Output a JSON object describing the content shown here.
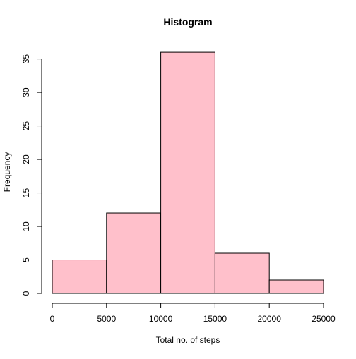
{
  "chart_data": {
    "type": "bar",
    "title": "Histogram",
    "xlabel": "Total no. of steps",
    "ylabel": "Frequency",
    "bins": [
      {
        "from": 0,
        "to": 5000,
        "count": 5
      },
      {
        "from": 5000,
        "to": 10000,
        "count": 12
      },
      {
        "from": 10000,
        "to": 15000,
        "count": 36
      },
      {
        "from": 15000,
        "to": 20000,
        "count": 6
      },
      {
        "from": 20000,
        "to": 25000,
        "count": 2
      }
    ],
    "xlim": [
      0,
      25000
    ],
    "ylim": [
      0,
      35
    ],
    "x_ticks": [
      0,
      5000,
      10000,
      15000,
      20000,
      25000
    ],
    "x_tick_labels": [
      "0",
      "5000",
      "10000",
      "15000",
      "20000",
      "25000"
    ],
    "y_ticks": [
      0,
      5,
      10,
      15,
      20,
      25,
      30,
      35
    ],
    "y_tick_labels": [
      "0",
      "5",
      "10",
      "15",
      "20",
      "25",
      "30",
      "35"
    ],
    "grid": false,
    "bar_fill": "#ffc0cb",
    "bar_stroke": "#000000"
  }
}
